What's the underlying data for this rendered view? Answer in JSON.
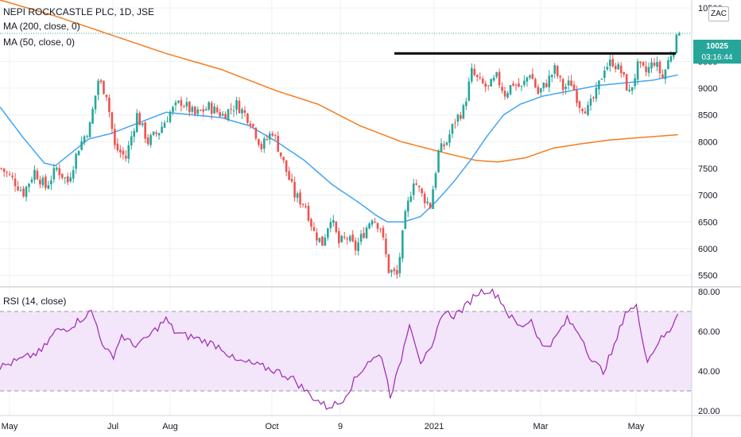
{
  "chart_data": [
    {
      "type": "candlestick",
      "title": "NEPI ROCKCASTLE PLC, 1D, JSE",
      "indicators": [
        {
          "name": "MA (200, close, 0)",
          "color": "#f57c1f"
        },
        {
          "name": "MA (50, close, 0)",
          "color": "#42a5f5"
        }
      ],
      "currency_badge": "ZAC",
      "last_price": "10025",
      "countdown": "03:16:44",
      "yticks": [
        "10500",
        "9500",
        "9000",
        "8500",
        "8000",
        "7500",
        "7000",
        "6500",
        "6000",
        "5500"
      ],
      "ylim": [
        5300,
        10650
      ],
      "xticks": [
        "May",
        "Jul",
        "Aug",
        "Oct",
        "9",
        "2021",
        "Mar",
        "May"
      ],
      "resistance_level": 9650,
      "price_anchors": [
        [
          0,
          7500
        ],
        [
          4,
          7300
        ],
        [
          8,
          7050
        ],
        [
          12,
          7450
        ],
        [
          16,
          7150
        ],
        [
          20,
          7500
        ],
        [
          24,
          7250
        ],
        [
          28,
          7900
        ],
        [
          32,
          8300
        ],
        [
          35,
          9150
        ],
        [
          38,
          8900
        ],
        [
          41,
          7900
        ],
        [
          45,
          7700
        ],
        [
          49,
          8500
        ],
        [
          53,
          8000
        ],
        [
          57,
          8200
        ],
        [
          61,
          8550
        ],
        [
          65,
          8750
        ],
        [
          70,
          8500
        ],
        [
          75,
          8650
        ],
        [
          80,
          8500
        ],
        [
          85,
          8700
        ],
        [
          90,
          8400
        ],
        [
          94,
          7900
        ],
        [
          98,
          8200
        ],
        [
          102,
          7600
        ],
        [
          106,
          7000
        ],
        [
          110,
          6800
        ],
        [
          113,
          6300
        ],
        [
          116,
          6100
        ],
        [
          119,
          6600
        ],
        [
          122,
          6100
        ],
        [
          125,
          6200
        ],
        [
          128,
          6000
        ],
        [
          131,
          6300
        ],
        [
          134,
          6600
        ],
        [
          137,
          6400
        ],
        [
          140,
          5600
        ],
        [
          143,
          5500
        ],
        [
          146,
          6600
        ],
        [
          149,
          7300
        ],
        [
          152,
          7000
        ],
        [
          155,
          6800
        ],
        [
          158,
          7800
        ],
        [
          161,
          8000
        ],
        [
          164,
          8400
        ],
        [
          167,
          8600
        ],
        [
          170,
          9300
        ],
        [
          173,
          9100
        ],
        [
          176,
          9000
        ],
        [
          179,
          9200
        ],
        [
          182,
          8900
        ],
        [
          185,
          9100
        ],
        [
          188,
          9000
        ],
        [
          191,
          9300
        ],
        [
          194,
          8900
        ],
        [
          197,
          9100
        ],
        [
          200,
          9350
        ],
        [
          203,
          9000
        ],
        [
          206,
          9100
        ],
        [
          209,
          8700
        ],
        [
          212,
          8600
        ],
        [
          215,
          8900
        ],
        [
          218,
          9400
        ],
        [
          221,
          9500
        ],
        [
          224,
          9300
        ],
        [
          227,
          8900
        ],
        [
          230,
          9400
        ],
        [
          233,
          9300
        ],
        [
          236,
          9500
        ],
        [
          239,
          9200
        ],
        [
          242,
          9650
        ],
        [
          245,
          10025
        ]
      ],
      "ma50_anchors": [
        [
          0,
          8650
        ],
        [
          8,
          8100
        ],
        [
          16,
          7600
        ],
        [
          20,
          7550
        ],
        [
          26,
          7800
        ],
        [
          32,
          8050
        ],
        [
          40,
          8150
        ],
        [
          50,
          8350
        ],
        [
          60,
          8550
        ],
        [
          70,
          8500
        ],
        [
          80,
          8450
        ],
        [
          90,
          8300
        ],
        [
          100,
          8000
        ],
        [
          110,
          7650
        ],
        [
          120,
          7200
        ],
        [
          130,
          6850
        ],
        [
          136,
          6620
        ],
        [
          140,
          6500
        ],
        [
          146,
          6500
        ],
        [
          152,
          6600
        ],
        [
          158,
          6900
        ],
        [
          164,
          7250
        ],
        [
          170,
          7650
        ],
        [
          176,
          8100
        ],
        [
          182,
          8500
        ],
        [
          188,
          8700
        ],
        [
          196,
          8850
        ],
        [
          206,
          8950
        ],
        [
          216,
          9050
        ],
        [
          226,
          9100
        ],
        [
          236,
          9150
        ],
        [
          245,
          9250
        ]
      ],
      "ma200_anchors": [
        [
          0,
          10650
        ],
        [
          20,
          10350
        ],
        [
          40,
          10000
        ],
        [
          60,
          9650
        ],
        [
          80,
          9350
        ],
        [
          100,
          8950
        ],
        [
          115,
          8700
        ],
        [
          130,
          8300
        ],
        [
          145,
          8000
        ],
        [
          160,
          7800
        ],
        [
          172,
          7650
        ],
        [
          180,
          7620
        ],
        [
          190,
          7700
        ],
        [
          200,
          7880
        ],
        [
          210,
          7960
        ],
        [
          220,
          8030
        ],
        [
          232,
          8080
        ],
        [
          245,
          8130
        ]
      ]
    },
    {
      "type": "line",
      "title": "RSI (14, close)",
      "yticks": [
        "80.00",
        "60.00",
        "40.00",
        "20.00"
      ],
      "ylim": [
        18,
        82
      ],
      "band": [
        30,
        70
      ],
      "color": "#9c27b0",
      "x": [
        0,
        8,
        15,
        20,
        25,
        30,
        33,
        35,
        38,
        41,
        44,
        48,
        52,
        57,
        60,
        63,
        66,
        70,
        74,
        80,
        85,
        90,
        95,
        100,
        106,
        112,
        118,
        123,
        128,
        133,
        138,
        141,
        144,
        148,
        152,
        156,
        160,
        164,
        168,
        172,
        176,
        180,
        184,
        188,
        192,
        196,
        200,
        205,
        210,
        214,
        218,
        222,
        226,
        230,
        234,
        238,
        242,
        245
      ],
      "values": [
        42,
        46,
        50,
        60,
        62,
        67,
        70,
        63,
        50,
        48,
        58,
        53,
        55,
        62,
        66,
        60,
        58,
        57,
        55,
        52,
        45,
        44,
        42,
        40,
        36,
        28,
        22,
        24,
        35,
        45,
        48,
        28,
        40,
        65,
        45,
        50,
        70,
        68,
        72,
        79,
        81,
        78,
        68,
        62,
        66,
        52,
        55,
        66,
        58,
        45,
        40,
        52,
        70,
        72,
        45,
        55,
        60,
        70
      ]
    }
  ]
}
